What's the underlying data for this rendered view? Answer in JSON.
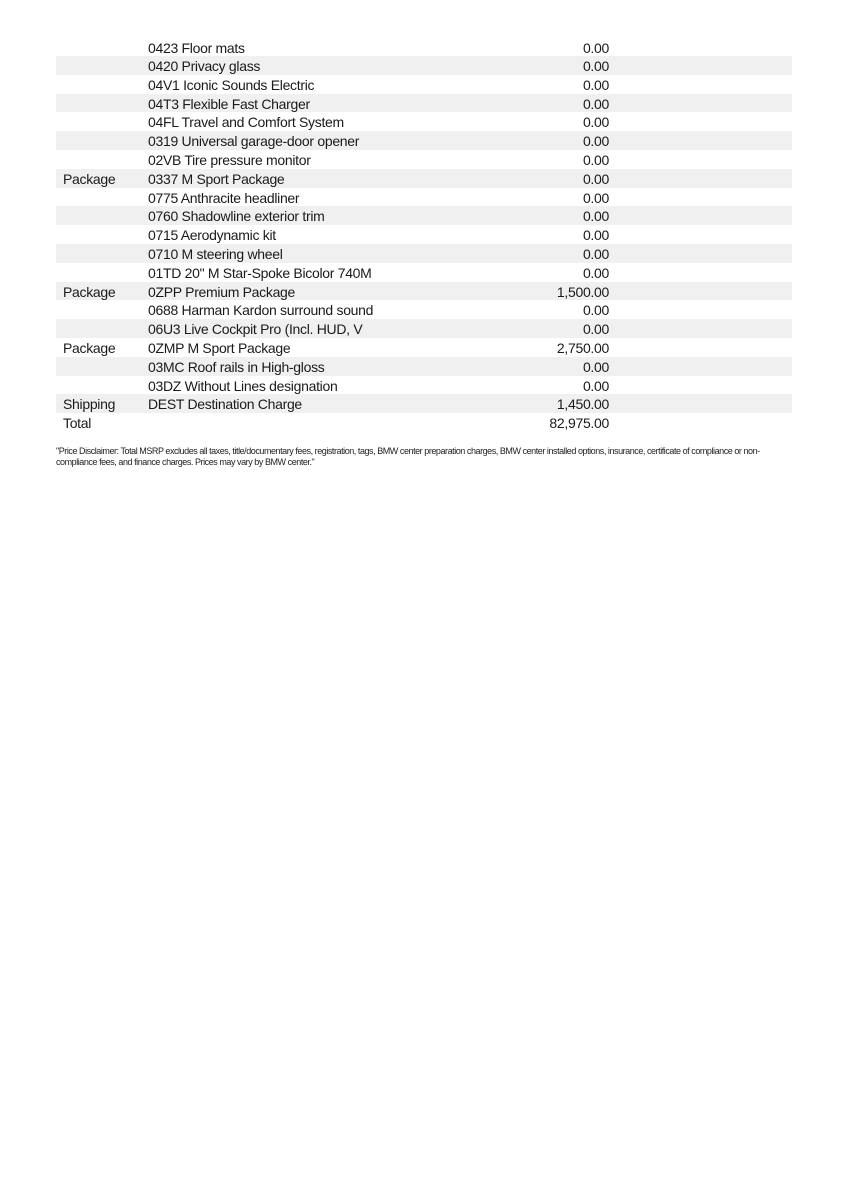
{
  "rows": [
    {
      "category": "",
      "description": "0423 Floor mats",
      "price": "0.00"
    },
    {
      "category": "",
      "description": "0420 Privacy glass",
      "price": "0.00"
    },
    {
      "category": "",
      "description": "04V1 Iconic Sounds Electric",
      "price": "0.00"
    },
    {
      "category": "",
      "description": "04T3 Flexible Fast Charger",
      "price": "0.00"
    },
    {
      "category": "",
      "description": "04FL Travel and Comfort System",
      "price": "0.00"
    },
    {
      "category": "",
      "description": "0319 Universal garage-door opener",
      "price": "0.00"
    },
    {
      "category": "",
      "description": "02VB Tire pressure monitor",
      "price": "0.00"
    },
    {
      "category": "Package",
      "description": "0337 M Sport Package",
      "price": "0.00"
    },
    {
      "category": "",
      "description": "0775 Anthracite headliner",
      "price": "0.00"
    },
    {
      "category": "",
      "description": "0760 Shadowline exterior trim",
      "price": "0.00"
    },
    {
      "category": "",
      "description": "0715 Aerodynamic kit",
      "price": "0.00"
    },
    {
      "category": "",
      "description": "0710 M steering wheel",
      "price": "0.00"
    },
    {
      "category": "",
      "description": "01TD 20\" M Star-Spoke Bicolor 740M",
      "price": "0.00"
    },
    {
      "category": "Package",
      "description": "0ZPP Premium Package",
      "price": "1,500.00"
    },
    {
      "category": "",
      "description": "0688 Harman Kardon surround sound",
      "price": "0.00"
    },
    {
      "category": "",
      "description": "06U3 Live Cockpit Pro (Incl. HUD, V",
      "price": "0.00"
    },
    {
      "category": "Package",
      "description": "0ZMP M Sport Package",
      "price": "2,750.00"
    },
    {
      "category": "",
      "description": "03MC Roof rails in High-gloss",
      "price": "0.00"
    },
    {
      "category": "",
      "description": "03DZ Without Lines designation",
      "price": "0.00"
    },
    {
      "category": "Shipping",
      "description": "DEST Destination Charge",
      "price": "1,450.00"
    },
    {
      "category": "Total",
      "description": "",
      "price": "82,975.00"
    }
  ],
  "disclaimer": "\"Price Disclaimer: Total MSRP excludes all taxes, title/documentary fees, registration, tags, BMW center preparation charges, BMW center installed options, insurance, certificate of compliance or non-compliance fees, and finance charges. Prices may vary by BMW center.\"",
  "colors": {
    "row_shade": "#f0f0f0",
    "text": "#1a1a1a"
  }
}
